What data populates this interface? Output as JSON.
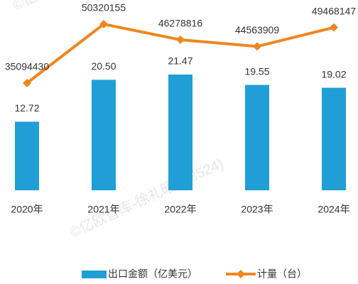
{
  "chart_data": {
    "type": "bar",
    "categories": [
      "2020年",
      "2021年",
      "2022年",
      "2023年",
      "2024年"
    ],
    "series": [
      {
        "name": "出口金额（亿美元）",
        "type": "bar",
        "color": "#1f9fd6",
        "values": [
          12.72,
          20.5,
          21.47,
          19.55,
          19.02
        ],
        "value_labels": [
          "12.72",
          "20.50",
          "21.47",
          "19.55",
          "19.02"
        ]
      },
      {
        "name": "计量（台）",
        "type": "line",
        "axis": "y2",
        "color": "#f0861f",
        "values": [
          35094430,
          50320155,
          46278816,
          44563909,
          49468147
        ]
      }
    ],
    "legend": "bottom",
    "grid": false,
    "watermark": "©亿欧智库-徐礼昭 (93524)"
  }
}
